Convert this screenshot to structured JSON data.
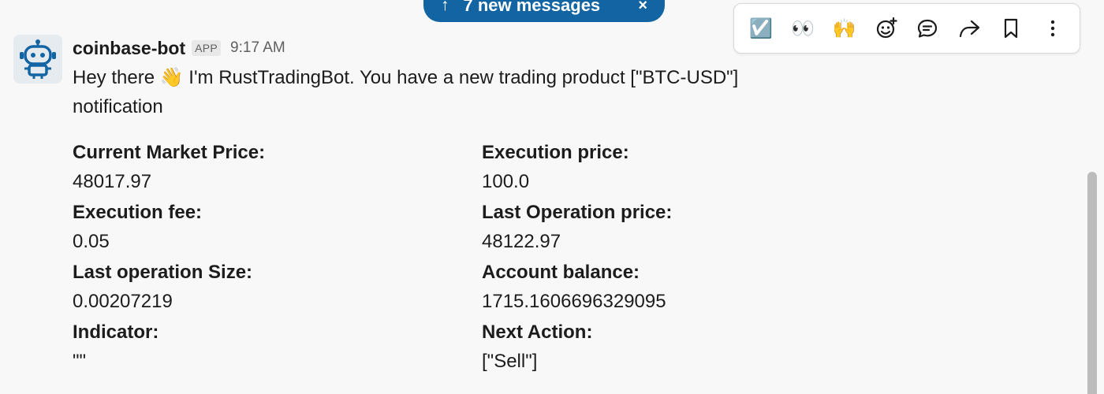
{
  "new_messages": {
    "label": "7 new messages",
    "arrow": "↑",
    "close": "×"
  },
  "toolbar": {
    "buttons": [
      {
        "name": "check-reaction-icon",
        "glyph": "☑️"
      },
      {
        "name": "eyes-reaction-icon",
        "glyph": "👀"
      },
      {
        "name": "raised-hands-reaction-icon",
        "glyph": "🙌"
      },
      {
        "name": "add-reaction-icon"
      },
      {
        "name": "reply-in-thread-icon"
      },
      {
        "name": "forward-message-icon"
      },
      {
        "name": "save-bookmark-icon"
      },
      {
        "name": "more-actions-icon"
      }
    ]
  },
  "message": {
    "sender": "coinbase-bot",
    "badge": "APP",
    "time": "9:17 AM",
    "text_before": "Hey there ",
    "wave_emoji": "👋",
    "text_after": " I'm RustTradingBot. You have a new trading product [\"BTC-USD\"] notification",
    "fields": [
      {
        "label": "Current Market Price:",
        "value": "48017.97"
      },
      {
        "label": "Execution price:",
        "value": "100.0"
      },
      {
        "label": "Execution fee:",
        "value": "0.05"
      },
      {
        "label": "Last Operation price:",
        "value": "48122.97"
      },
      {
        "label": "Last operation Size:",
        "value": "0.00207219"
      },
      {
        "label": "Account balance:",
        "value": "1715.1606696329095"
      },
      {
        "label": "Indicator:",
        "value": "\"\""
      },
      {
        "label": "Next Action:",
        "value": "[\"Sell\"]"
      }
    ]
  }
}
